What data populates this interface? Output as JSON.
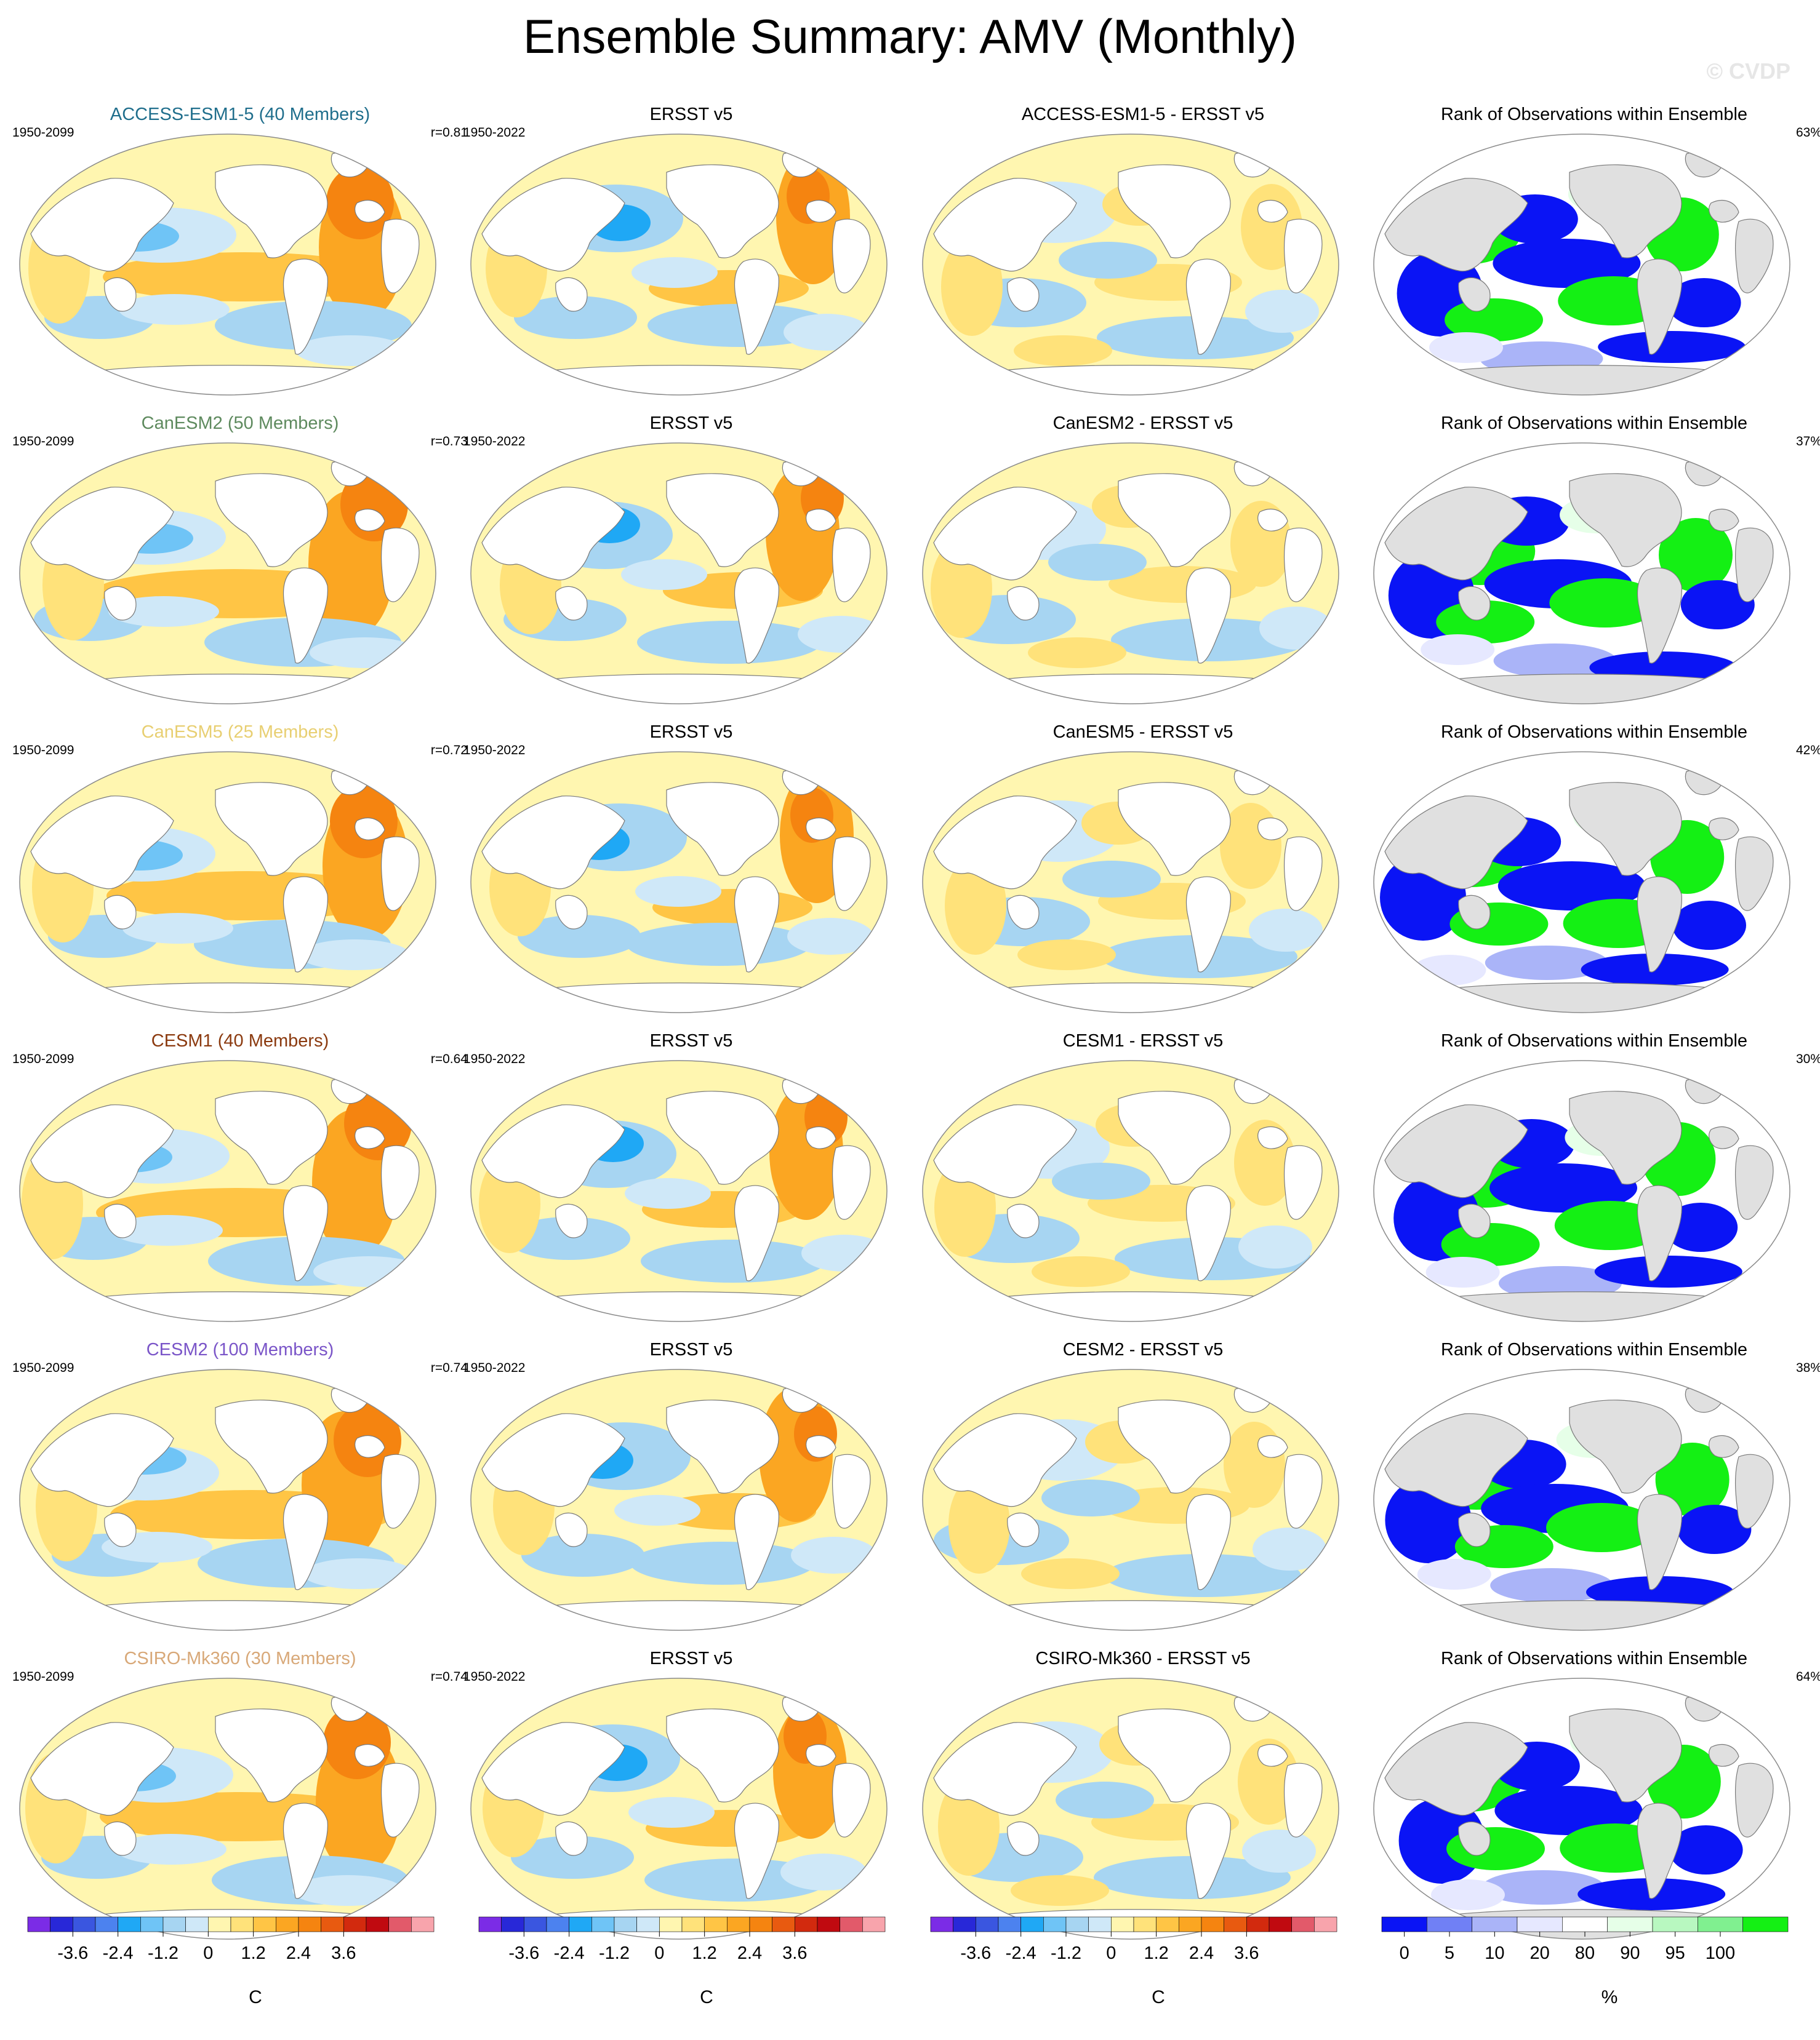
{
  "title": "Ensemble Summary: AMV (Monthly)",
  "watermark": "© CVDP",
  "colors": {
    "sst_scale": [
      "#7b2ce6",
      "#2828d8",
      "#3a56e0",
      "#4c82ef",
      "#1fa8f5",
      "#6fc4f6",
      "#a7d5f2",
      "#cfe8f8",
      "#fff6b0",
      "#ffe27a",
      "#ffc545",
      "#fba622",
      "#f58410",
      "#e85a10",
      "#d22a0e",
      "#c00a10",
      "#e25a6a",
      "#f8a4ac"
    ],
    "rank_scale": [
      "#0a14f5",
      "#7080f5",
      "#aab4f8",
      "#e6e8ff",
      "#ffffff",
      "#e6ffe8",
      "#b8f8c0",
      "#80f090",
      "#14f014"
    ],
    "land_gray": "#e0e0e0",
    "coast": "#7a7a7a"
  },
  "rows": [
    {
      "model": "ACCESS-ESM1-5 (40 Members)",
      "model_color": "#1f6e8c",
      "model_period": "1950-2099",
      "pattern_corr": "r=0.81",
      "obs_title": "ERSST v5",
      "obs_period": "1950-2022",
      "diff_title": "ACCESS-ESM1-5 - ERSST v5",
      "rank_title": "Rank of Observations within Ensemble",
      "rank_pct": "63%"
    },
    {
      "model": "CanESM2 (50 Members)",
      "model_color": "#5e8a5e",
      "model_period": "1950-2099",
      "pattern_corr": "r=0.73",
      "obs_title": "ERSST v5",
      "obs_period": "1950-2022",
      "diff_title": "CanESM2 - ERSST v5",
      "rank_title": "Rank of Observations within Ensemble",
      "rank_pct": "37%"
    },
    {
      "model": "CanESM5 (25 Members)",
      "model_color": "#e8cf72",
      "model_period": "1950-2099",
      "pattern_corr": "r=0.72",
      "obs_title": "ERSST v5",
      "obs_period": "1950-2022",
      "diff_title": "CanESM5 - ERSST v5",
      "rank_title": "Rank of Observations within Ensemble",
      "rank_pct": "42%"
    },
    {
      "model": "CESM1 (40 Members)",
      "model_color": "#8b3a0f",
      "model_period": "1950-2099",
      "pattern_corr": "r=0.64",
      "obs_title": "ERSST v5",
      "obs_period": "1950-2022",
      "diff_title": "CESM1 - ERSST v5",
      "rank_title": "Rank of Observations within Ensemble",
      "rank_pct": "30%"
    },
    {
      "model": "CESM2 (100 Members)",
      "model_color": "#7a55c8",
      "model_period": "1950-2099",
      "pattern_corr": "r=0.74",
      "obs_title": "ERSST v5",
      "obs_period": "1950-2022",
      "diff_title": "CESM2 - ERSST v5",
      "rank_title": "Rank of Observations within Ensemble",
      "rank_pct": "38%"
    },
    {
      "model": "CSIRO-Mk360 (30 Members)",
      "model_color": "#d8a878",
      "model_period": "1950-2099",
      "pattern_corr": "r=0.74",
      "obs_title": "ERSST v5",
      "obs_period": "1950-2022",
      "diff_title": "CSIRO-Mk360 - ERSST v5",
      "rank_title": "Rank of Observations within Ensemble",
      "rank_pct": "64%"
    }
  ],
  "colorbars": {
    "sst_ticks": [
      "-3.6",
      "-2.4",
      "-1.2",
      "0",
      "1.2",
      "2.4",
      "3.6"
    ],
    "sst_unit": "C",
    "rank_ticks": [
      "0",
      "5",
      "10",
      "20",
      "80",
      "90",
      "95",
      "100"
    ],
    "rank_unit": "%"
  }
}
